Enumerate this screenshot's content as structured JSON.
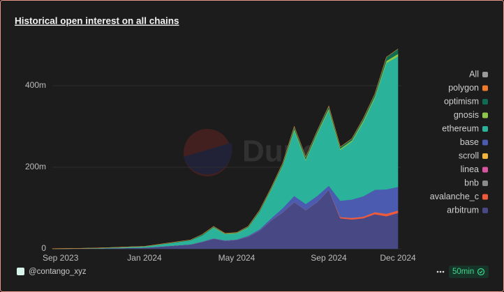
{
  "chart_data": {
    "type": "stacked_area",
    "title": "Historical open interest on all chains",
    "watermark": "Dune",
    "categories": [
      "Sep 2023",
      null,
      null,
      null,
      null,
      null,
      null,
      null,
      "Jan 2024",
      null,
      null,
      null,
      null,
      null,
      null,
      null,
      "May 2024",
      null,
      null,
      null,
      null,
      null,
      null,
      null,
      "Sep 2024",
      null,
      null,
      null,
      null,
      null,
      "Dec 2024"
    ],
    "ylim": [
      0,
      500000000
    ],
    "yticks": [
      0,
      {
        "value": 200000000,
        "label": "200m"
      },
      {
        "value": 400000000,
        "label": "400m"
      }
    ],
    "grid": true,
    "legend_position": "right",
    "legend_toggle": {
      "label": "All",
      "color": "#9a9a9a"
    },
    "series": [
      {
        "name": "polygon",
        "color": "#f07a2a",
        "values": [
          0,
          0,
          0,
          0,
          0,
          0,
          0,
          0,
          0,
          0,
          0,
          0,
          0,
          0,
          0,
          0,
          0,
          0,
          0,
          0,
          0,
          0,
          0,
          0,
          0,
          0,
          0,
          0,
          0,
          0,
          0
        ]
      },
      {
        "name": "optimism",
        "color": "#0f6b52",
        "values": [
          0,
          0,
          0,
          0,
          0,
          0,
          0,
          0,
          0,
          500000,
          1000000,
          1000000,
          1000000,
          2000000,
          2000000,
          1000000,
          1000000,
          2000000,
          3000000,
          3000000,
          4000000,
          6000000,
          5000000,
          5000000,
          6000000,
          4000000,
          4000000,
          5000000,
          6000000,
          9000000,
          12000000
        ]
      },
      {
        "name": "gnosis",
        "color": "#8fc74a",
        "values": [
          0,
          0,
          0,
          0,
          0,
          0,
          0,
          0,
          0,
          0,
          0,
          0,
          0,
          0,
          1000000,
          1000000,
          1000000,
          1000000,
          1000000,
          2000000,
          2000000,
          4000000,
          3000000,
          3000000,
          4000000,
          3000000,
          3000000,
          4000000,
          4000000,
          5000000,
          6000000
        ]
      },
      {
        "name": "ethereum",
        "color": "#2ab39a",
        "values": [
          100000,
          200000,
          400000,
          600000,
          1000000,
          1500000,
          2000000,
          2500000,
          3000000,
          4500000,
          6000000,
          8000000,
          10000000,
          15000000,
          26000000,
          15000000,
          15000000,
          20000000,
          43000000,
          70000000,
          104000000,
          160000000,
          107000000,
          152000000,
          185000000,
          125000000,
          142000000,
          182000000,
          225000000,
          310000000,
          320000000
        ]
      },
      {
        "name": "base",
        "color": "#4a5bb0",
        "values": [
          0,
          0,
          0,
          0,
          0,
          0,
          0,
          0,
          0,
          0,
          0,
          0,
          0,
          1000000,
          1000000,
          1000000,
          1000000,
          2000000,
          3000000,
          5000000,
          10000000,
          15000000,
          15000000,
          15000000,
          10000000,
          40000000,
          45000000,
          50000000,
          55000000,
          60000000,
          58000000
        ]
      },
      {
        "name": "scroll",
        "color": "#f0b43a",
        "values": [
          0,
          0,
          0,
          0,
          0,
          0,
          0,
          0,
          0,
          0,
          0,
          0,
          0,
          0,
          0,
          0,
          0,
          0,
          0,
          0,
          0,
          0,
          0,
          0,
          0,
          0,
          0,
          0,
          0,
          0,
          0
        ]
      },
      {
        "name": "linea",
        "color": "#d9559e",
        "values": [
          0,
          0,
          0,
          0,
          0,
          0,
          0,
          0,
          0,
          0,
          0,
          0,
          0,
          0,
          0,
          0,
          0,
          0,
          0,
          0,
          0,
          0,
          0,
          0,
          0,
          0,
          0,
          0,
          0,
          0,
          0
        ]
      },
      {
        "name": "bnb",
        "color": "#8a8a8a",
        "values": [
          0,
          0,
          0,
          0,
          0,
          0,
          0,
          0,
          0,
          0,
          0,
          0,
          0,
          0,
          0,
          0,
          0,
          0,
          0,
          0,
          0,
          0,
          0,
          0,
          0,
          0,
          0,
          0,
          0,
          0,
          0
        ]
      },
      {
        "name": "avalanche_c",
        "color": "#f05a3a",
        "values": [
          0,
          0,
          0,
          0,
          0,
          0,
          0,
          0,
          0,
          0,
          0,
          0,
          0,
          0,
          0,
          0,
          0,
          0,
          0,
          0,
          0,
          0,
          0,
          0,
          0,
          3000000,
          4000000,
          4000000,
          5000000,
          6000000,
          6000000
        ]
      },
      {
        "name": "arbitrum",
        "color": "#474884",
        "values": [
          200000,
          400000,
          600000,
          800000,
          1000000,
          1500000,
          2000000,
          2500000,
          3000000,
          5000000,
          7000000,
          9000000,
          11000000,
          17000000,
          25000000,
          20000000,
          22000000,
          30000000,
          45000000,
          70000000,
          90000000,
          115000000,
          95000000,
          115000000,
          145000000,
          75000000,
          72000000,
          75000000,
          85000000,
          80000000,
          88000000
        ]
      }
    ]
  },
  "footer": {
    "author": "@contango_xyz",
    "refresh": "50min"
  }
}
